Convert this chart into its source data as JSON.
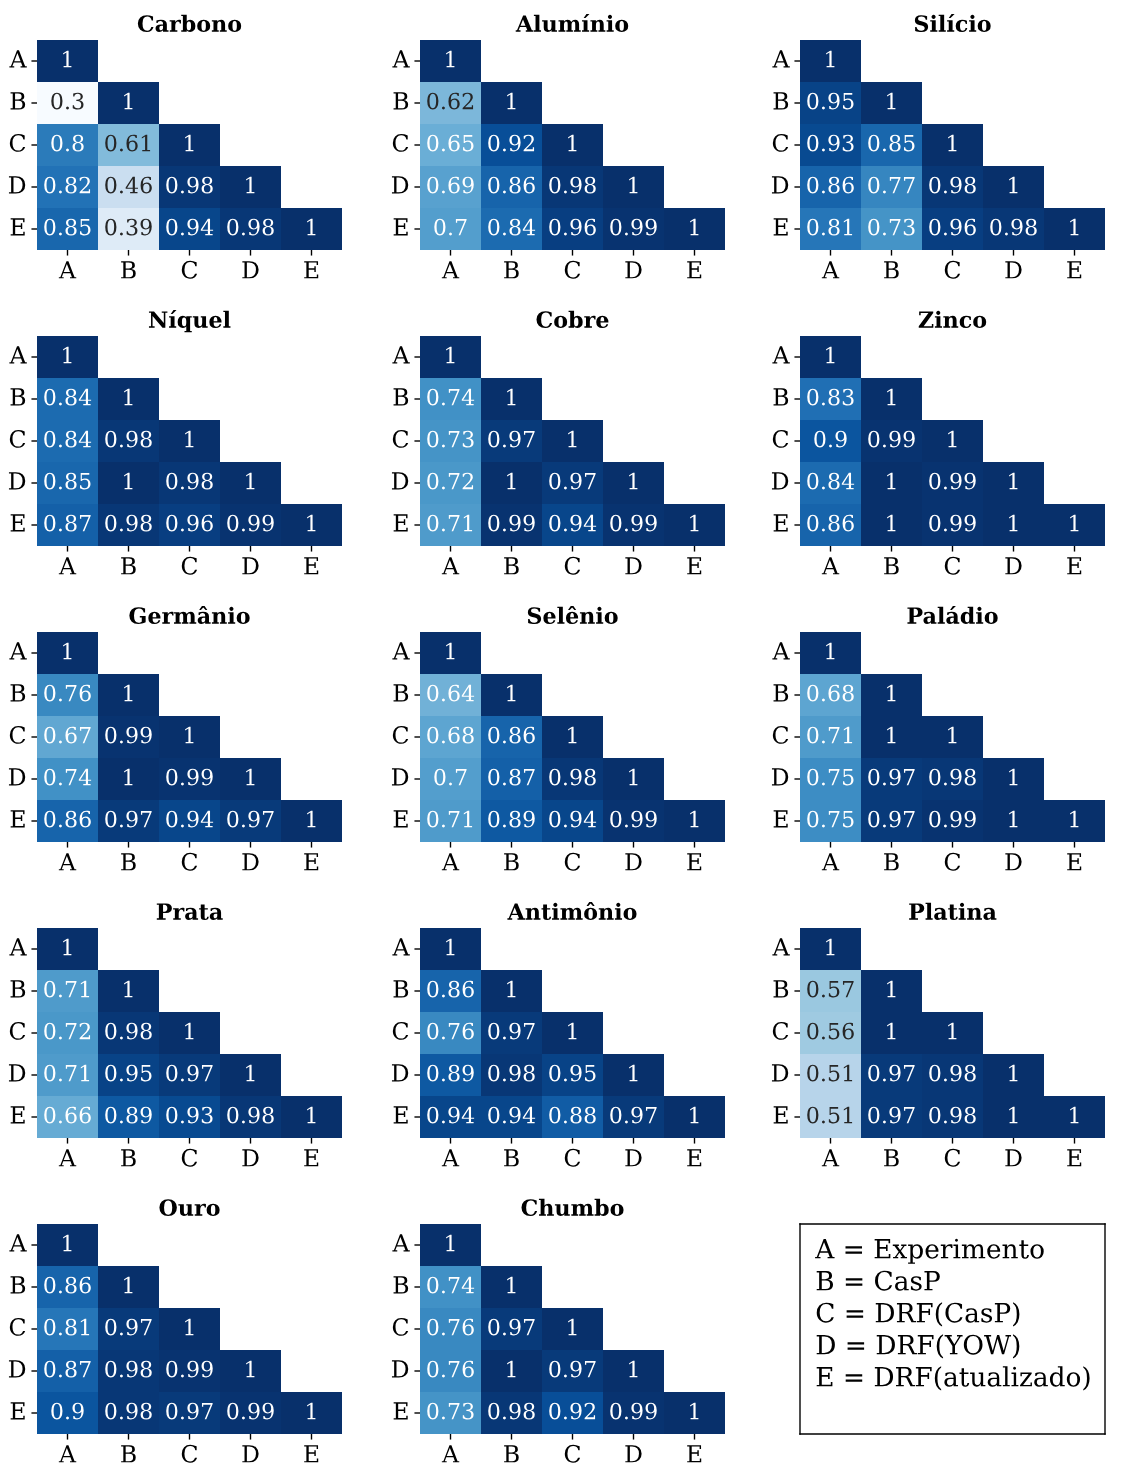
{
  "chart_data": [
    {
      "type": "heatmap",
      "title": "Carbono",
      "categories": [
        "A",
        "B",
        "C",
        "D",
        "E"
      ],
      "y_categories": [
        "A",
        "B",
        "C",
        "D",
        "E"
      ],
      "cells": [
        [
          1,
          null,
          null,
          null,
          null
        ],
        [
          0.3,
          1,
          null,
          null,
          null
        ],
        [
          0.8,
          0.61,
          1,
          null,
          null
        ],
        [
          0.82,
          0.46,
          0.98,
          1,
          null
        ],
        [
          0.85,
          0.39,
          0.94,
          0.98,
          1
        ]
      ],
      "data_labels": true
    },
    {
      "type": "heatmap",
      "title": "Alumínio",
      "categories": [
        "A",
        "B",
        "C",
        "D",
        "E"
      ],
      "y_categories": [
        "A",
        "B",
        "C",
        "D",
        "E"
      ],
      "cells": [
        [
          1,
          null,
          null,
          null,
          null
        ],
        [
          0.62,
          1,
          null,
          null,
          null
        ],
        [
          0.65,
          0.92,
          1,
          null,
          null
        ],
        [
          0.69,
          0.86,
          0.98,
          1,
          null
        ],
        [
          0.7,
          0.84,
          0.96,
          0.99,
          1
        ]
      ],
      "data_labels": true
    },
    {
      "type": "heatmap",
      "title": "Silício",
      "categories": [
        "A",
        "B",
        "C",
        "D",
        "E"
      ],
      "y_categories": [
        "A",
        "B",
        "C",
        "D",
        "E"
      ],
      "cells": [
        [
          1,
          null,
          null,
          null,
          null
        ],
        [
          0.95,
          1,
          null,
          null,
          null
        ],
        [
          0.93,
          0.85,
          1,
          null,
          null
        ],
        [
          0.86,
          0.77,
          0.98,
          1,
          null
        ],
        [
          0.81,
          0.73,
          0.96,
          0.98,
          1
        ]
      ],
      "data_labels": true
    },
    {
      "type": "heatmap",
      "title": "Níquel",
      "categories": [
        "A",
        "B",
        "C",
        "D",
        "E"
      ],
      "y_categories": [
        "A",
        "B",
        "C",
        "D",
        "E"
      ],
      "cells": [
        [
          1,
          null,
          null,
          null,
          null
        ],
        [
          0.84,
          1,
          null,
          null,
          null
        ],
        [
          0.84,
          0.98,
          1,
          null,
          null
        ],
        [
          0.85,
          1,
          0.98,
          1,
          null
        ],
        [
          0.87,
          0.98,
          0.96,
          0.99,
          1
        ]
      ],
      "data_labels": true
    },
    {
      "type": "heatmap",
      "title": "Cobre",
      "categories": [
        "A",
        "B",
        "C",
        "D",
        "E"
      ],
      "y_categories": [
        "A",
        "B",
        "C",
        "D",
        "E"
      ],
      "cells": [
        [
          1,
          null,
          null,
          null,
          null
        ],
        [
          0.74,
          1,
          null,
          null,
          null
        ],
        [
          0.73,
          0.97,
          1,
          null,
          null
        ],
        [
          0.72,
          1,
          0.97,
          1,
          null
        ],
        [
          0.71,
          0.99,
          0.94,
          0.99,
          1
        ]
      ],
      "data_labels": true
    },
    {
      "type": "heatmap",
      "title": "Zinco",
      "categories": [
        "A",
        "B",
        "C",
        "D",
        "E"
      ],
      "y_categories": [
        "A",
        "B",
        "C",
        "D",
        "E"
      ],
      "cells": [
        [
          1,
          null,
          null,
          null,
          null
        ],
        [
          0.83,
          1,
          null,
          null,
          null
        ],
        [
          0.9,
          0.99,
          1,
          null,
          null
        ],
        [
          0.84,
          1,
          0.99,
          1,
          null
        ],
        [
          0.86,
          1,
          0.99,
          1,
          1
        ]
      ],
      "data_labels": true
    },
    {
      "type": "heatmap",
      "title": "Germânio",
      "categories": [
        "A",
        "B",
        "C",
        "D",
        "E"
      ],
      "y_categories": [
        "A",
        "B",
        "C",
        "D",
        "E"
      ],
      "cells": [
        [
          1,
          null,
          null,
          null,
          null
        ],
        [
          0.76,
          1,
          null,
          null,
          null
        ],
        [
          0.67,
          0.99,
          1,
          null,
          null
        ],
        [
          0.74,
          1,
          0.99,
          1,
          null
        ],
        [
          0.86,
          0.97,
          0.94,
          0.97,
          1
        ]
      ],
      "data_labels": true
    },
    {
      "type": "heatmap",
      "title": "Selênio",
      "categories": [
        "A",
        "B",
        "C",
        "D",
        "E"
      ],
      "y_categories": [
        "A",
        "B",
        "C",
        "D",
        "E"
      ],
      "cells": [
        [
          1,
          null,
          null,
          null,
          null
        ],
        [
          0.64,
          1,
          null,
          null,
          null
        ],
        [
          0.68,
          0.86,
          1,
          null,
          null
        ],
        [
          0.7,
          0.87,
          0.98,
          1,
          null
        ],
        [
          0.71,
          0.89,
          0.94,
          0.99,
          1
        ]
      ],
      "data_labels": true
    },
    {
      "type": "heatmap",
      "title": "Paládio",
      "categories": [
        "A",
        "B",
        "C",
        "D",
        "E"
      ],
      "y_categories": [
        "A",
        "B",
        "C",
        "D",
        "E"
      ],
      "cells": [
        [
          1,
          null,
          null,
          null,
          null
        ],
        [
          0.68,
          1,
          null,
          null,
          null
        ],
        [
          0.71,
          1,
          1,
          null,
          null
        ],
        [
          0.75,
          0.97,
          0.98,
          1,
          null
        ],
        [
          0.75,
          0.97,
          0.99,
          1,
          1
        ]
      ],
      "data_labels": true
    },
    {
      "type": "heatmap",
      "title": "Prata",
      "categories": [
        "A",
        "B",
        "C",
        "D",
        "E"
      ],
      "y_categories": [
        "A",
        "B",
        "C",
        "D",
        "E"
      ],
      "cells": [
        [
          1,
          null,
          null,
          null,
          null
        ],
        [
          0.71,
          1,
          null,
          null,
          null
        ],
        [
          0.72,
          0.98,
          1,
          null,
          null
        ],
        [
          0.71,
          0.95,
          0.97,
          1,
          null
        ],
        [
          0.66,
          0.89,
          0.93,
          0.98,
          1
        ]
      ],
      "data_labels": true
    },
    {
      "type": "heatmap",
      "title": "Antimônio",
      "categories": [
        "A",
        "B",
        "C",
        "D",
        "E"
      ],
      "y_categories": [
        "A",
        "B",
        "C",
        "D",
        "E"
      ],
      "cells": [
        [
          1,
          null,
          null,
          null,
          null
        ],
        [
          0.86,
          1,
          null,
          null,
          null
        ],
        [
          0.76,
          0.97,
          1,
          null,
          null
        ],
        [
          0.89,
          0.98,
          0.95,
          1,
          null
        ],
        [
          0.94,
          0.94,
          0.88,
          0.97,
          1
        ]
      ],
      "data_labels": true
    },
    {
      "type": "heatmap",
      "title": "Platina",
      "categories": [
        "A",
        "B",
        "C",
        "D",
        "E"
      ],
      "y_categories": [
        "A",
        "B",
        "C",
        "D",
        "E"
      ],
      "cells": [
        [
          1,
          null,
          null,
          null,
          null
        ],
        [
          0.57,
          1,
          null,
          null,
          null
        ],
        [
          0.56,
          1,
          1,
          null,
          null
        ],
        [
          0.51,
          0.97,
          0.98,
          1,
          null
        ],
        [
          0.51,
          0.97,
          0.98,
          1,
          1
        ]
      ],
      "data_labels": true
    },
    {
      "type": "heatmap",
      "title": "Ouro",
      "categories": [
        "A",
        "B",
        "C",
        "D",
        "E"
      ],
      "y_categories": [
        "A",
        "B",
        "C",
        "D",
        "E"
      ],
      "cells": [
        [
          1,
          null,
          null,
          null,
          null
        ],
        [
          0.86,
          1,
          null,
          null,
          null
        ],
        [
          0.81,
          0.97,
          1,
          null,
          null
        ],
        [
          0.87,
          0.98,
          0.99,
          1,
          null
        ],
        [
          0.9,
          0.98,
          0.97,
          0.99,
          1
        ]
      ],
      "data_labels": true
    },
    {
      "type": "heatmap",
      "title": "Chumbo",
      "categories": [
        "A",
        "B",
        "C",
        "D",
        "E"
      ],
      "y_categories": [
        "A",
        "B",
        "C",
        "D",
        "E"
      ],
      "cells": [
        [
          1,
          null,
          null,
          null,
          null
        ],
        [
          0.74,
          1,
          null,
          null,
          null
        ],
        [
          0.76,
          0.97,
          1,
          null,
          null
        ],
        [
          0.76,
          1,
          0.97,
          1,
          null
        ],
        [
          0.73,
          0.98,
          0.92,
          0.99,
          1
        ]
      ],
      "data_labels": true
    },
    {
      "type": "other",
      "annotations": [
        "A = Experimento",
        "B = CasP",
        "C = DRF(CasP)",
        "D = DRF(YOW)",
        "E = DRF(atualizado)"
      ]
    }
  ]
}
